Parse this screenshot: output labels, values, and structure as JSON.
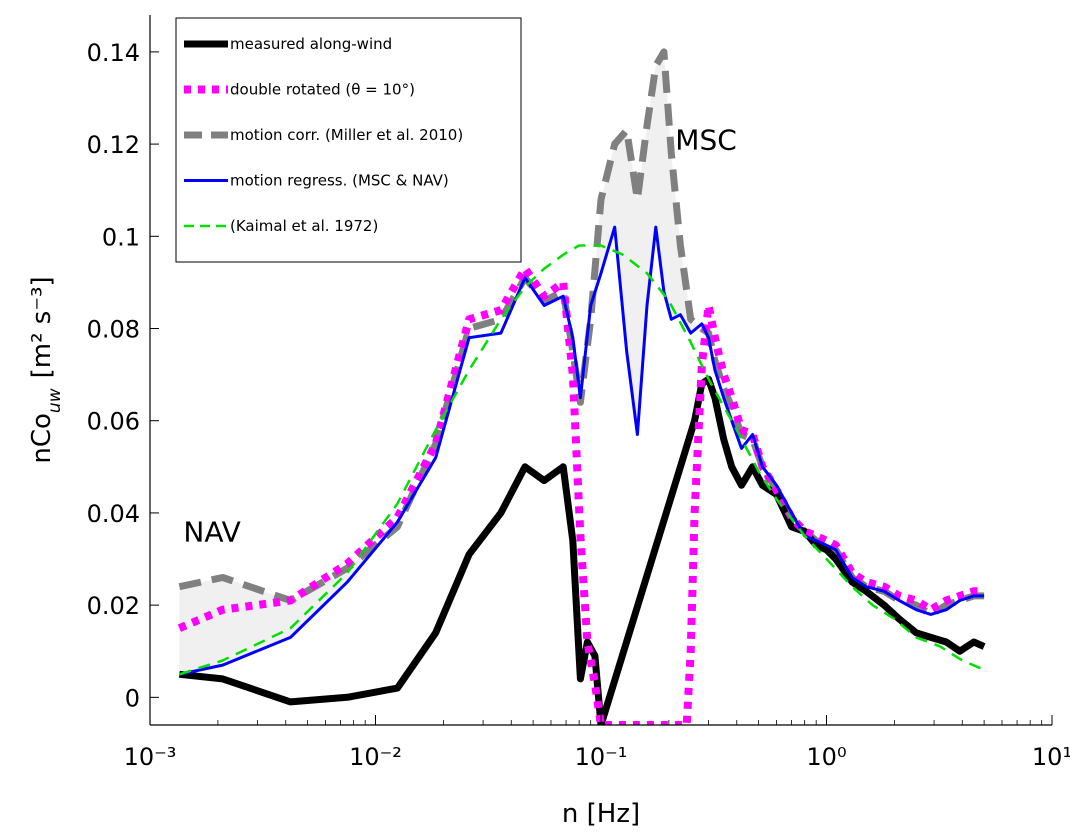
{
  "chart_data": {
    "type": "line",
    "xscale": "log",
    "xlabel": "n [Hz]",
    "ylabel": "nCo",
    "ylabel_sub": "uw",
    "ylabel_units": "[m² s⁻³]",
    "xlim": [
      0.001,
      10
    ],
    "ylim": [
      -0.006,
      0.148
    ],
    "xticks": [
      0.001,
      0.01,
      0.1,
      1,
      10
    ],
    "xtick_labels": [
      "10⁻³",
      "10⁻²",
      "10⁻¹",
      "10⁰",
      "10¹"
    ],
    "yticks": [
      0,
      0.02,
      0.04,
      0.06,
      0.08,
      0.1,
      0.12,
      0.14
    ],
    "ytick_labels": [
      "0",
      "0.02",
      "0.04",
      "0.06",
      "0.08",
      "0.1",
      "0.12",
      "0.14"
    ],
    "grid": false,
    "legend_position": "top-left",
    "annotations": [
      {
        "text": "NAV",
        "x": 0.00135,
        "y": 0.036
      },
      {
        "text": "MSC",
        "x": 0.205,
        "y": 0.121
      }
    ],
    "series": [
      {
        "name": "measured along-wind",
        "color": "#000000",
        "style": "solid-thick",
        "x": [
          0.00135,
          0.0021,
          0.0042,
          0.0075,
          0.0125,
          0.0185,
          0.026,
          0.036,
          0.046,
          0.056,
          0.068,
          0.075,
          0.081,
          0.087,
          0.094,
          0.1,
          0.26,
          0.28,
          0.3,
          0.32,
          0.35,
          0.38,
          0.42,
          0.47,
          0.52,
          0.6,
          0.7,
          0.8,
          0.9,
          1.0,
          1.1,
          1.3,
          1.5,
          1.8,
          2.1,
          2.5,
          2.9,
          3.4,
          3.9,
          4.5,
          5.0
        ],
        "y": [
          0.005,
          0.004,
          -0.001,
          0.0,
          0.002,
          0.014,
          0.031,
          0.04,
          0.05,
          0.047,
          0.05,
          0.034,
          0.004,
          0.012,
          0.009,
          -0.006,
          0.06,
          0.068,
          0.069,
          0.065,
          0.056,
          0.05,
          0.046,
          0.05,
          0.046,
          0.044,
          0.037,
          0.036,
          0.033,
          0.032,
          0.03,
          0.025,
          0.023,
          0.02,
          0.017,
          0.014,
          0.013,
          0.012,
          0.01,
          0.012,
          0.011
        ]
      },
      {
        "name": "double rotated (θ = 10°)",
        "color": "#ff00ff",
        "style": "dotted",
        "x": [
          0.00135,
          0.0021,
          0.0042,
          0.0075,
          0.0125,
          0.0185,
          0.026,
          0.036,
          0.046,
          0.056,
          0.068,
          0.075,
          0.081,
          0.087,
          0.094,
          0.1,
          0.24,
          0.25,
          0.26,
          0.28,
          0.3,
          0.32,
          0.35,
          0.38,
          0.42,
          0.47,
          0.52,
          0.6,
          0.7,
          0.8,
          0.9,
          1.0,
          1.1,
          1.3,
          1.5,
          1.8,
          2.1,
          2.5,
          2.9,
          3.4,
          3.9,
          4.5,
          5.0
        ],
        "y": [
          0.015,
          0.019,
          0.021,
          0.029,
          0.039,
          0.055,
          0.082,
          0.084,
          0.093,
          0.087,
          0.09,
          0.07,
          0.035,
          0.012,
          0.003,
          -0.006,
          -0.006,
          0.01,
          0.04,
          0.072,
          0.085,
          0.078,
          0.07,
          0.065,
          0.058,
          0.057,
          0.05,
          0.045,
          0.039,
          0.036,
          0.035,
          0.034,
          0.033,
          0.027,
          0.025,
          0.024,
          0.022,
          0.021,
          0.019,
          0.021,
          0.022,
          0.023,
          0.023
        ]
      },
      {
        "name": "motion corr. (Miller et al. 2010)",
        "color": "#808080",
        "style": "dashed-thick",
        "x": [
          0.00135,
          0.0021,
          0.0042,
          0.0075,
          0.0125,
          0.0185,
          0.026,
          0.036,
          0.046,
          0.056,
          0.068,
          0.075,
          0.081,
          0.09,
          0.1,
          0.115,
          0.13,
          0.145,
          0.16,
          0.175,
          0.19,
          0.205,
          0.225,
          0.25,
          0.28,
          0.3,
          0.32,
          0.35,
          0.38,
          0.42,
          0.47,
          0.52,
          0.6,
          0.7,
          0.8,
          0.9,
          1.0,
          1.1,
          1.3,
          1.5,
          1.8,
          2.1,
          2.5,
          2.9,
          3.4,
          3.9,
          4.5,
          5.0
        ],
        "y": [
          0.024,
          0.026,
          0.021,
          0.028,
          0.037,
          0.055,
          0.08,
          0.082,
          0.091,
          0.086,
          0.088,
          0.075,
          0.064,
          0.082,
          0.108,
          0.12,
          0.123,
          0.108,
          0.124,
          0.137,
          0.14,
          0.118,
          0.098,
          0.082,
          0.08,
          0.079,
          0.073,
          0.067,
          0.063,
          0.057,
          0.056,
          0.05,
          0.045,
          0.039,
          0.036,
          0.034,
          0.033,
          0.032,
          0.026,
          0.024,
          0.023,
          0.021,
          0.02,
          0.018,
          0.02,
          0.021,
          0.022,
          0.022
        ]
      },
      {
        "name": "motion regress. (MSC & NAV)",
        "color": "#0000ff",
        "style": "solid",
        "x": [
          0.00135,
          0.0021,
          0.0042,
          0.0075,
          0.0125,
          0.0185,
          0.026,
          0.036,
          0.046,
          0.056,
          0.068,
          0.075,
          0.081,
          0.09,
          0.1,
          0.115,
          0.13,
          0.145,
          0.16,
          0.175,
          0.19,
          0.205,
          0.225,
          0.25,
          0.28,
          0.3,
          0.32,
          0.35,
          0.38,
          0.42,
          0.47,
          0.52,
          0.6,
          0.7,
          0.8,
          0.9,
          1.0,
          1.1,
          1.3,
          1.5,
          1.8,
          2.1,
          2.5,
          2.9,
          3.4,
          3.9,
          4.5,
          5.0
        ],
        "y": [
          0.005,
          0.007,
          0.013,
          0.025,
          0.038,
          0.052,
          0.078,
          0.079,
          0.091,
          0.085,
          0.087,
          0.078,
          0.065,
          0.085,
          0.092,
          0.102,
          0.075,
          0.057,
          0.085,
          0.102,
          0.088,
          0.082,
          0.083,
          0.079,
          0.081,
          0.078,
          0.071,
          0.065,
          0.06,
          0.054,
          0.057,
          0.05,
          0.046,
          0.04,
          0.035,
          0.034,
          0.033,
          0.032,
          0.026,
          0.024,
          0.023,
          0.021,
          0.019,
          0.018,
          0.019,
          0.021,
          0.022,
          0.022
        ]
      },
      {
        "name": "(Kaimal et al. 1972)",
        "color": "#00e000",
        "style": "dashed",
        "x": [
          0.00135,
          0.0021,
          0.0042,
          0.0075,
          0.0125,
          0.0185,
          0.026,
          0.036,
          0.046,
          0.056,
          0.068,
          0.08,
          0.1,
          0.125,
          0.16,
          0.2,
          0.25,
          0.3,
          0.4,
          0.5,
          0.6,
          0.8,
          1.0,
          1.3,
          1.6,
          2.0,
          2.5,
          3.2,
          4.0,
          5.0
        ],
        "y": [
          0.005,
          0.008,
          0.015,
          0.027,
          0.042,
          0.058,
          0.071,
          0.082,
          0.089,
          0.093,
          0.096,
          0.098,
          0.098,
          0.096,
          0.092,
          0.086,
          0.077,
          0.069,
          0.058,
          0.049,
          0.043,
          0.035,
          0.03,
          0.024,
          0.02,
          0.017,
          0.013,
          0.011,
          0.008,
          0.006
        ]
      }
    ]
  }
}
